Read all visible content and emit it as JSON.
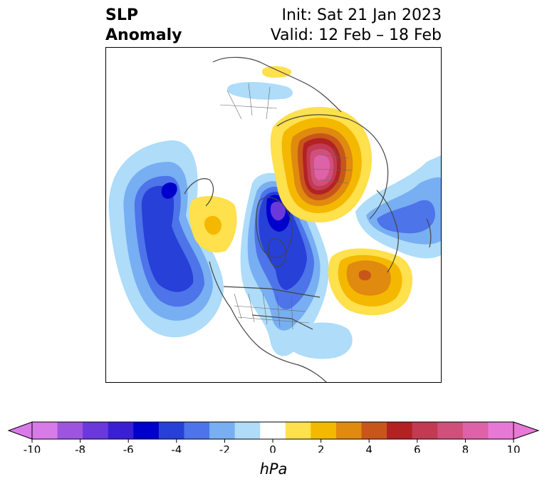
{
  "title": {
    "left_line1": "SLP",
    "left_line2": "Anomaly",
    "init": "Init: Sat 21 Jan 2023",
    "valid": "Valid: 12 Feb – 18 Feb"
  },
  "colorbar": {
    "unit": "hPa",
    "tick_labels": [
      "-10",
      "-8",
      "-6",
      "-4",
      "-2",
      "0",
      "2",
      "4",
      "6",
      "8",
      "10"
    ],
    "colors": [
      "#d87be8",
      "#9d55e0",
      "#6a38db",
      "#3a20d3",
      "#0000cc",
      "#2640d8",
      "#4d74e8",
      "#78aef2",
      "#aedcf9",
      "#ffffff",
      "#ffe04d",
      "#f5b800",
      "#e08a10",
      "#c8561a",
      "#b22222",
      "#c23b52",
      "#d0507c",
      "#de62a8",
      "#e878d6"
    ],
    "extend_low_color": "#d87be8",
    "extend_high_color": "#e878d6"
  }
}
